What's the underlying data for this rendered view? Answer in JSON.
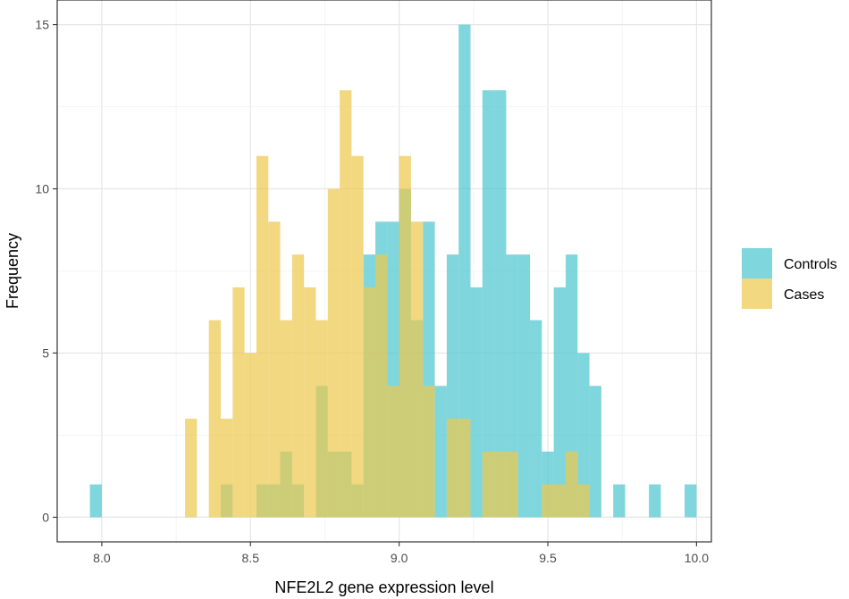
{
  "chart_data": {
    "type": "histogram",
    "xlabel": "NFE2L2 gene expression level",
    "ylabel": "Frequency",
    "xlim": [
      7.85,
      10.05
    ],
    "ylim": [
      -0.75,
      15.75
    ],
    "x_ticks": [
      8.0,
      8.5,
      9.0,
      9.5,
      10.0
    ],
    "x_tick_labels": [
      "8.0",
      "8.5",
      "9.0",
      "9.5",
      "10.0"
    ],
    "y_ticks": [
      0,
      5,
      10,
      15
    ],
    "y_tick_labels": [
      "0",
      "5",
      "10",
      "15"
    ],
    "grid": true,
    "legend_position": "right",
    "bin_width": 0.04,
    "series": [
      {
        "name": "Controls",
        "color": "#4ec6cf",
        "bins": [
          {
            "x": 7.98,
            "count": 1
          },
          {
            "x": 8.42,
            "count": 1
          },
          {
            "x": 8.54,
            "count": 1
          },
          {
            "x": 8.58,
            "count": 1
          },
          {
            "x": 8.62,
            "count": 2
          },
          {
            "x": 8.66,
            "count": 1
          },
          {
            "x": 8.74,
            "count": 4
          },
          {
            "x": 8.78,
            "count": 2
          },
          {
            "x": 8.82,
            "count": 2
          },
          {
            "x": 8.86,
            "count": 1
          },
          {
            "x": 8.9,
            "count": 8
          },
          {
            "x": 8.94,
            "count": 9
          },
          {
            "x": 8.98,
            "count": 9
          },
          {
            "x": 9.02,
            "count": 10
          },
          {
            "x": 9.06,
            "count": 6
          },
          {
            "x": 9.1,
            "count": 9
          },
          {
            "x": 9.14,
            "count": 4
          },
          {
            "x": 9.18,
            "count": 8
          },
          {
            "x": 9.22,
            "count": 15
          },
          {
            "x": 9.26,
            "count": 7
          },
          {
            "x": 9.3,
            "count": 13
          },
          {
            "x": 9.34,
            "count": 13
          },
          {
            "x": 9.38,
            "count": 8
          },
          {
            "x": 9.42,
            "count": 8
          },
          {
            "x": 9.46,
            "count": 6
          },
          {
            "x": 9.5,
            "count": 2
          },
          {
            "x": 9.54,
            "count": 7
          },
          {
            "x": 9.58,
            "count": 8
          },
          {
            "x": 9.62,
            "count": 5
          },
          {
            "x": 9.66,
            "count": 4
          },
          {
            "x": 9.74,
            "count": 1
          },
          {
            "x": 9.86,
            "count": 1
          },
          {
            "x": 9.98,
            "count": 1
          }
        ]
      },
      {
        "name": "Cases",
        "color": "#edc951",
        "bins": [
          {
            "x": 8.3,
            "count": 3
          },
          {
            "x": 8.38,
            "count": 6
          },
          {
            "x": 8.42,
            "count": 3
          },
          {
            "x": 8.46,
            "count": 7
          },
          {
            "x": 8.5,
            "count": 5
          },
          {
            "x": 8.54,
            "count": 11
          },
          {
            "x": 8.58,
            "count": 9
          },
          {
            "x": 8.62,
            "count": 6
          },
          {
            "x": 8.66,
            "count": 8
          },
          {
            "x": 8.7,
            "count": 7
          },
          {
            "x": 8.74,
            "count": 6
          },
          {
            "x": 8.78,
            "count": 10
          },
          {
            "x": 8.82,
            "count": 13
          },
          {
            "x": 8.86,
            "count": 11
          },
          {
            "x": 8.9,
            "count": 7
          },
          {
            "x": 8.94,
            "count": 8
          },
          {
            "x": 8.98,
            "count": 4
          },
          {
            "x": 9.02,
            "count": 11
          },
          {
            "x": 9.06,
            "count": 9
          },
          {
            "x": 9.1,
            "count": 4
          },
          {
            "x": 9.18,
            "count": 3
          },
          {
            "x": 9.22,
            "count": 3
          },
          {
            "x": 9.3,
            "count": 2
          },
          {
            "x": 9.34,
            "count": 2
          },
          {
            "x": 9.38,
            "count": 2
          },
          {
            "x": 9.5,
            "count": 1
          },
          {
            "x": 9.54,
            "count": 1
          },
          {
            "x": 9.58,
            "count": 2
          },
          {
            "x": 9.62,
            "count": 1
          }
        ]
      }
    ]
  }
}
